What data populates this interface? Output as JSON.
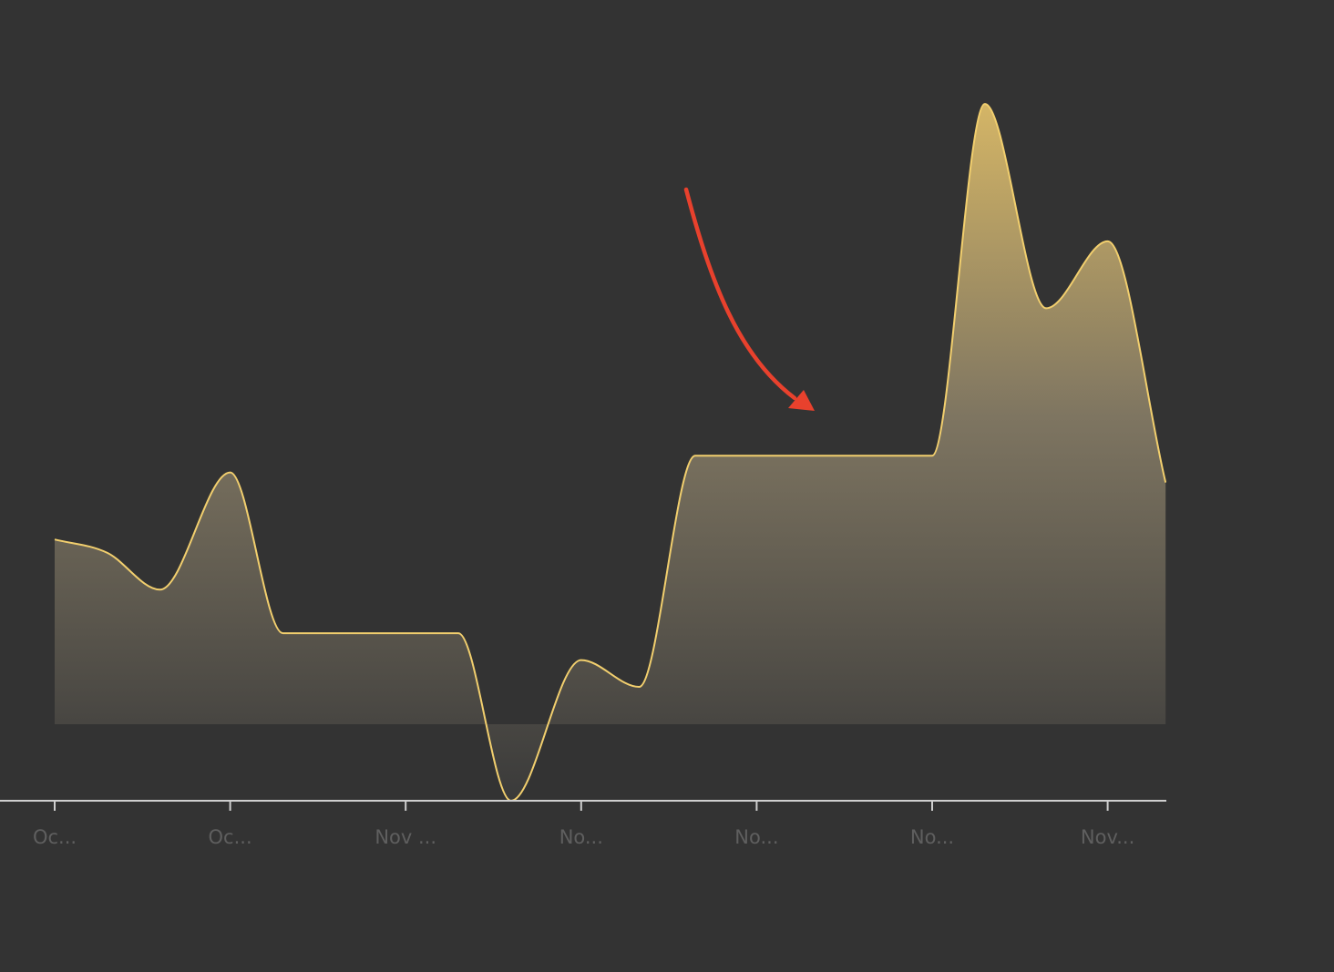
{
  "colors": {
    "background": "#333333",
    "line": "#f2cf6e",
    "fill_top": "#d4b566",
    "fill_bottom": "#3a3a3a",
    "axis": "#cfcfcf",
    "tick_label": "#5f5f5f",
    "annotation_arrow": "#e8412d"
  },
  "chart_data": {
    "type": "area",
    "curve": "smooth",
    "grid": false,
    "legend": "none",
    "y_axis": "hidden",
    "tick_labels": [
      "Oc...",
      "Oc...",
      "Nov ...",
      "No...",
      "No...",
      "No...",
      "Nov..."
    ],
    "x": [
      0,
      0.3,
      0.6,
      1,
      1.3,
      1.65,
      2,
      2.3,
      2.6,
      3,
      3.33,
      3.65,
      4,
      4.3,
      4.6,
      5,
      5.3,
      5.65,
      6,
      6.33
    ],
    "values": [
      5.3,
      4.9,
      3.8,
      7.3,
      2.5,
      2.5,
      2.5,
      2.5,
      -2.5,
      1.7,
      0.9,
      7.8,
      7.8,
      7.8,
      7.8,
      7.8,
      18.3,
      12.2,
      14.2,
      7.0
    ],
    "ylim": [
      -2.5,
      19.5
    ],
    "annotation": {
      "type": "arrow"
    }
  }
}
